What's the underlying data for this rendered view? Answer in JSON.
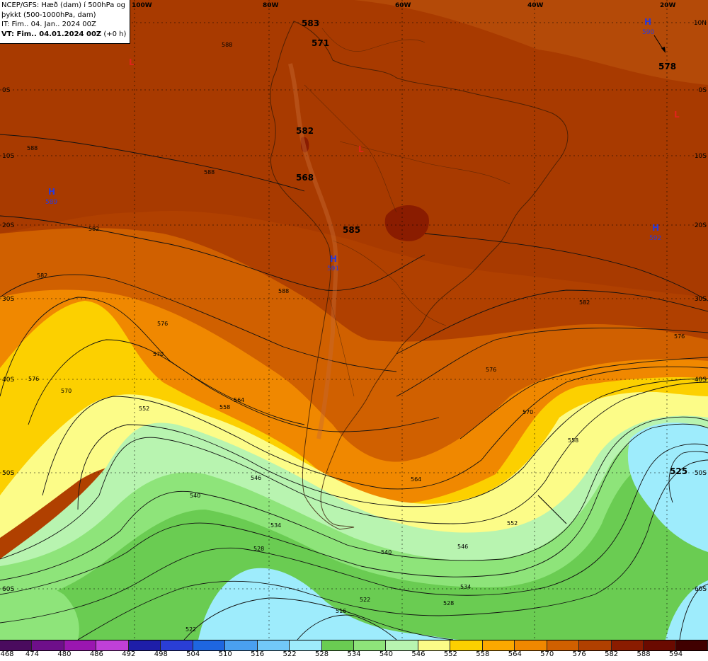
{
  "header": {
    "line1": "NCEP/GFS: Hæð (dam) í 500hPa og",
    "line2": "þykkt (500-1000hPa, dam)",
    "line3": "IT: Fim.. 04. Jan.. 2024 00Z",
    "line4": "VT: Fim.. 04.01.2024 00Z",
    "line4_suffix": "(+0 h)"
  },
  "axes": {
    "lon_labels": [
      "100W",
      "80W",
      "60W",
      "40W",
      "20W"
    ],
    "lat_labels_left": [
      "0S",
      "10S",
      "20S",
      "30S",
      "40S",
      "50S",
      "60S"
    ],
    "lat_labels_right": [
      "10N",
      "0S",
      "10S",
      "20S",
      "30S",
      "40S",
      "50S",
      "60S"
    ]
  },
  "pressure_centers": [
    {
      "type": "H",
      "value": "590",
      "color": "#2a3adb"
    },
    {
      "type": "H",
      "value": "589",
      "color": "#2a3adb"
    },
    {
      "type": "H",
      "value": "591",
      "color": "#2a3adb"
    },
    {
      "type": "H",
      "value": "592",
      "color": "#2a3adb"
    },
    {
      "type": "L",
      "value": "",
      "color": "#e0241b"
    },
    {
      "type": "L",
      "value": "",
      "color": "#e0241b"
    },
    {
      "type": "L",
      "value": "",
      "color": "#e0241b"
    }
  ],
  "big_labels": [
    "583",
    "571",
    "578",
    "582",
    "568",
    "585",
    "525"
  ],
  "contour_labels": [
    "588",
    "588",
    "588",
    "582",
    "588",
    "582",
    "576",
    "570",
    "576",
    "570",
    "564",
    "558",
    "552",
    "546",
    "540",
    "534",
    "528",
    "522",
    "516",
    "582",
    "576",
    "570",
    "564",
    "558",
    "552",
    "546",
    "540",
    "534",
    "528",
    "522",
    "576"
  ],
  "legend": {
    "colors": [
      "#4a0b5e",
      "#6e0f8a",
      "#9a16b0",
      "#c040d8",
      "#1e1ea8",
      "#2a3ed6",
      "#1e66e0",
      "#4aa0f0",
      "#72c8f8",
      "#9eecfc",
      "#6acc52",
      "#8ee47a",
      "#b8f4b0",
      "#fcfc88",
      "#fcd000",
      "#fca800",
      "#f08800",
      "#d06000",
      "#b04000",
      "#8a1c00",
      "#6a0a00",
      "#400000"
    ],
    "ticks": [
      "468",
      "474",
      "480",
      "486",
      "492",
      "498",
      "504",
      "510",
      "516",
      "522",
      "528",
      "534",
      "540",
      "546",
      "552",
      "558",
      "564",
      "570",
      "576",
      "582",
      "588",
      "594"
    ]
  }
}
